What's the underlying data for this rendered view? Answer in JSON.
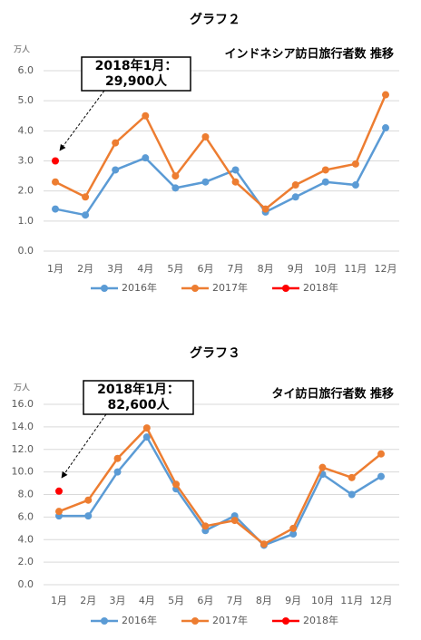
{
  "chart_data": [
    {
      "type": "line",
      "title": "グラフ２",
      "subtitle": "インドネシア訪日旅行者数 推移",
      "y_label": "万人",
      "annotation": [
        "2018年1月：",
        "29,900人"
      ],
      "categories": [
        "1月",
        "2月",
        "3月",
        "4月",
        "5月",
        "6月",
        "7月",
        "8月",
        "9月",
        "10月",
        "11月",
        "12月"
      ],
      "series": [
        {
          "name": "2016年",
          "color": "#5b9bd5",
          "values": [
            1.4,
            1.2,
            2.7,
            3.1,
            2.1,
            2.3,
            2.7,
            1.3,
            1.8,
            2.3,
            2.2,
            4.1
          ]
        },
        {
          "name": "2017年",
          "color": "#ed7d31",
          "values": [
            2.3,
            1.8,
            3.6,
            4.5,
            2.5,
            3.8,
            2.3,
            1.4,
            2.2,
            2.7,
            2.9,
            5.2
          ]
        },
        {
          "name": "2018年",
          "color": "#ff0000",
          "values": [
            3.0,
            null,
            null,
            null,
            null,
            null,
            null,
            null,
            null,
            null,
            null,
            null
          ]
        }
      ],
      "ylim": [
        0,
        6
      ],
      "yticks": [
        {
          "value": 0,
          "label": "0.0"
        },
        {
          "value": 1,
          "label": "1.0"
        },
        {
          "value": 2,
          "label": "2.0"
        },
        {
          "value": 3,
          "label": "3.0"
        },
        {
          "value": 4,
          "label": "4.0"
        },
        {
          "value": 5,
          "label": "5.0"
        },
        {
          "value": 6,
          "label": "6.0"
        }
      ],
      "grid": true,
      "legend": "bottom"
    },
    {
      "type": "line",
      "title": "グラフ３",
      "subtitle": "タイ訪日旅行者数 推移",
      "y_label": "万人",
      "annotation": [
        "2018年1月：",
        "82,600人"
      ],
      "categories": [
        "1月",
        "2月",
        "3月",
        "4月",
        "5月",
        "6月",
        "7月",
        "8月",
        "9月",
        "10月",
        "11月",
        "12月"
      ],
      "series": [
        {
          "name": "2016年",
          "color": "#5b9bd5",
          "values": [
            6.1,
            6.1,
            10.0,
            13.1,
            8.5,
            4.8,
            6.1,
            3.5,
            4.5,
            9.8,
            8.0,
            9.6
          ]
        },
        {
          "name": "2017年",
          "color": "#ed7d31",
          "values": [
            6.5,
            7.5,
            11.2,
            13.9,
            8.9,
            5.2,
            5.7,
            3.6,
            5.0,
            10.4,
            9.5,
            11.6
          ]
        },
        {
          "name": "2018年",
          "color": "#ff0000",
          "values": [
            8.3,
            null,
            null,
            null,
            null,
            null,
            null,
            null,
            null,
            null,
            null,
            null
          ]
        }
      ],
      "ylim": [
        0,
        16
      ],
      "yticks": [
        {
          "value": 0,
          "label": "0.0"
        },
        {
          "value": 2,
          "label": "2.0"
        },
        {
          "value": 4,
          "label": "4.0"
        },
        {
          "value": 6,
          "label": "6.0"
        },
        {
          "value": 8,
          "label": "8.0"
        },
        {
          "value": 10,
          "label": "10.0"
        },
        {
          "value": 12,
          "label": "12.0"
        },
        {
          "value": 14,
          "label": "14.0"
        },
        {
          "value": 16,
          "label": "16.0"
        }
      ],
      "grid": true,
      "legend": "bottom"
    }
  ]
}
